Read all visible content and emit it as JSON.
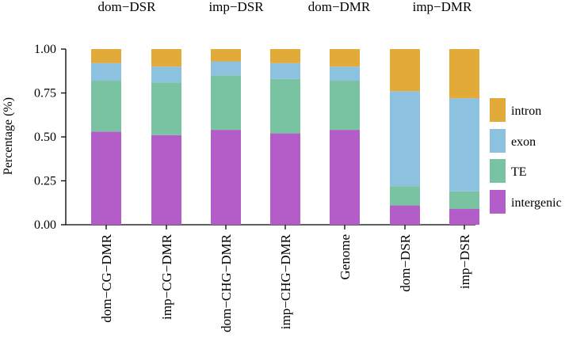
{
  "top_labels": [
    "dom−DSR",
    "imp−DSR",
    "dom−DMR",
    "imp−DMR"
  ],
  "chart_data": {
    "type": "bar",
    "stacked": true,
    "ylabel": "Percentage (%)",
    "ylim": [
      0,
      1
    ],
    "yticks": [
      "0.00",
      "0.25",
      "0.50",
      "0.75",
      "1.00"
    ],
    "categories": [
      "dom−CG−DMR",
      "imp−CG−DMR",
      "dom−CHG−DMR",
      "imp−CHG−DMR",
      "Genome",
      "dom−DSR",
      "imp−DSR"
    ],
    "series": [
      {
        "name": "intergenic",
        "legend_text": "intergenic",
        "color": "#B25DC8",
        "values": [
          0.53,
          0.51,
          0.54,
          0.52,
          0.54,
          0.11,
          0.09
        ]
      },
      {
        "name": "TE",
        "legend_text": "TE",
        "color": "#79C3A2",
        "values": [
          0.29,
          0.3,
          0.31,
          0.31,
          0.28,
          0.11,
          0.1
        ]
      },
      {
        "name": "exon",
        "legend_text": "exon",
        "color": "#8CC1E0",
        "values": [
          0.1,
          0.09,
          0.08,
          0.09,
          0.08,
          0.54,
          0.53
        ]
      },
      {
        "name": "intron",
        "legend_text": "intron",
        "color": "#E2AA39",
        "values": [
          0.08,
          0.1,
          0.07,
          0.08,
          0.1,
          0.24,
          0.28
        ]
      }
    ],
    "legend_position": "right",
    "grid": false
  }
}
